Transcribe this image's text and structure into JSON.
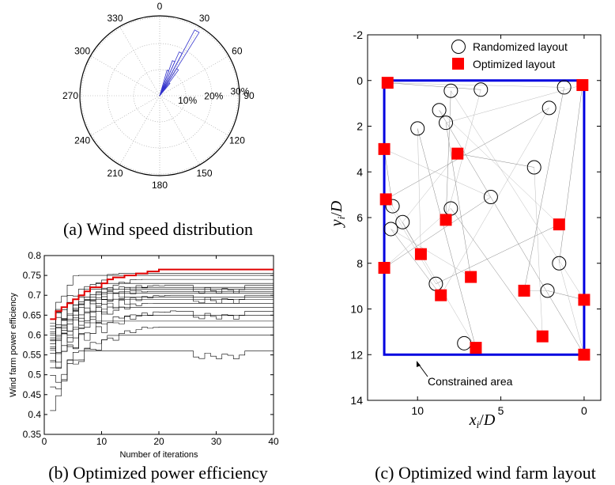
{
  "chart_data": [
    {
      "type": "polar-bar",
      "caption": "(a) Wind speed distribution",
      "angle_labels": [
        "0",
        "30",
        "60",
        "90",
        "120",
        "150",
        "180",
        "210",
        "240",
        "270",
        "300",
        "330"
      ],
      "radial_labels": [
        "10%",
        "20%",
        "30%"
      ],
      "rlim": [
        0,
        30
      ],
      "grid": true,
      "bins": [
        {
          "angle": 18,
          "value": 10
        },
        {
          "angle": 22,
          "value": 14
        },
        {
          "angle": 26,
          "value": 18
        },
        {
          "angle": 30,
          "value": 28
        },
        {
          "angle": 34,
          "value": 12
        },
        {
          "angle": 38,
          "value": 6
        }
      ]
    },
    {
      "type": "line",
      "caption": "(b) Optimized power efficiency",
      "xlabel": "Number of iterations",
      "ylabel": "Wind farm power efficiency",
      "xlim": [
        0,
        40
      ],
      "ylim": [
        0.35,
        0.8
      ],
      "xticks": [
        "0",
        "10",
        "20",
        "30",
        "40"
      ],
      "yticks": [
        "0.35",
        "0.4",
        "0.45",
        "0.5",
        "0.55",
        "0.6",
        "0.65",
        "0.7",
        "0.75",
        "0.8"
      ],
      "best": {
        "x": [
          1,
          2,
          3,
          4,
          5,
          6,
          7,
          8,
          9,
          10,
          11,
          12,
          14,
          16,
          18,
          20,
          25,
          30,
          35,
          40
        ],
        "y": [
          0.64,
          0.66,
          0.67,
          0.68,
          0.69,
          0.7,
          0.71,
          0.72,
          0.72,
          0.73,
          0.74,
          0.745,
          0.75,
          0.755,
          0.76,
          0.765,
          0.765,
          0.765,
          0.765,
          0.765
        ]
      },
      "runs_final": [
        0.56,
        0.6,
        0.62,
        0.635,
        0.65,
        0.66,
        0.67,
        0.68,
        0.69,
        0.695,
        0.7,
        0.705,
        0.71,
        0.715,
        0.72,
        0.725,
        0.73,
        0.74,
        0.75,
        0.755
      ],
      "runs_start": [
        0.39,
        0.45,
        0.48,
        0.5,
        0.52,
        0.54,
        0.55,
        0.56,
        0.57,
        0.58,
        0.59,
        0.6,
        0.61,
        0.62,
        0.63,
        0.64,
        0.6,
        0.58,
        0.62,
        0.55
      ]
    },
    {
      "type": "scatter",
      "caption": "(c) Optimized wind farm layout",
      "xlabel": "xi/D",
      "ylabel": "yi/D",
      "xlim": [
        13,
        -1
      ],
      "ylim": [
        14,
        -2
      ],
      "xticks": [
        "10",
        "5",
        "0"
      ],
      "yticks": [
        "-2",
        "0",
        "2",
        "4",
        "6",
        "8",
        "10",
        "12",
        "14"
      ],
      "legend": [
        {
          "name": "Randomized layout",
          "marker": "circle"
        },
        {
          "name": "Optimized layout",
          "marker": "square",
          "color": "#ff0000"
        }
      ],
      "annotation": "Constrained area",
      "constrained_area": {
        "x": [
          0,
          12
        ],
        "y": [
          0,
          12
        ]
      },
      "randomized": [
        {
          "x": 6.2,
          "y": 0.4
        },
        {
          "x": 8.0,
          "y": 0.45
        },
        {
          "x": 1.2,
          "y": 0.3
        },
        {
          "x": 8.7,
          "y": 1.3
        },
        {
          "x": 2.1,
          "y": 1.2
        },
        {
          "x": 8.3,
          "y": 1.85
        },
        {
          "x": 10.0,
          "y": 2.1
        },
        {
          "x": 3.0,
          "y": 3.8
        },
        {
          "x": 5.6,
          "y": 5.1
        },
        {
          "x": 8.0,
          "y": 5.6
        },
        {
          "x": 11.5,
          "y": 5.5
        },
        {
          "x": 10.9,
          "y": 6.2
        },
        {
          "x": 11.6,
          "y": 6.5
        },
        {
          "x": 1.5,
          "y": 8.0
        },
        {
          "x": 8.9,
          "y": 8.9
        },
        {
          "x": 2.2,
          "y": 9.2
        },
        {
          "x": 7.2,
          "y": 11.5
        }
      ],
      "optimized": [
        {
          "x": 11.8,
          "y": 0.1
        },
        {
          "x": 0.1,
          "y": 0.2
        },
        {
          "x": 12.0,
          "y": 3.0
        },
        {
          "x": 7.6,
          "y": 3.2
        },
        {
          "x": 11.9,
          "y": 5.2
        },
        {
          "x": 8.3,
          "y": 6.1
        },
        {
          "x": 1.5,
          "y": 6.3
        },
        {
          "x": 9.8,
          "y": 7.6
        },
        {
          "x": 12.0,
          "y": 8.2
        },
        {
          "x": 6.8,
          "y": 8.6
        },
        {
          "x": 3.6,
          "y": 9.2
        },
        {
          "x": 0.0,
          "y": 9.6
        },
        {
          "x": 8.6,
          "y": 9.4
        },
        {
          "x": 2.5,
          "y": 11.2
        },
        {
          "x": 6.5,
          "y": 11.7
        },
        {
          "x": 0.0,
          "y": 12.0
        }
      ]
    }
  ]
}
